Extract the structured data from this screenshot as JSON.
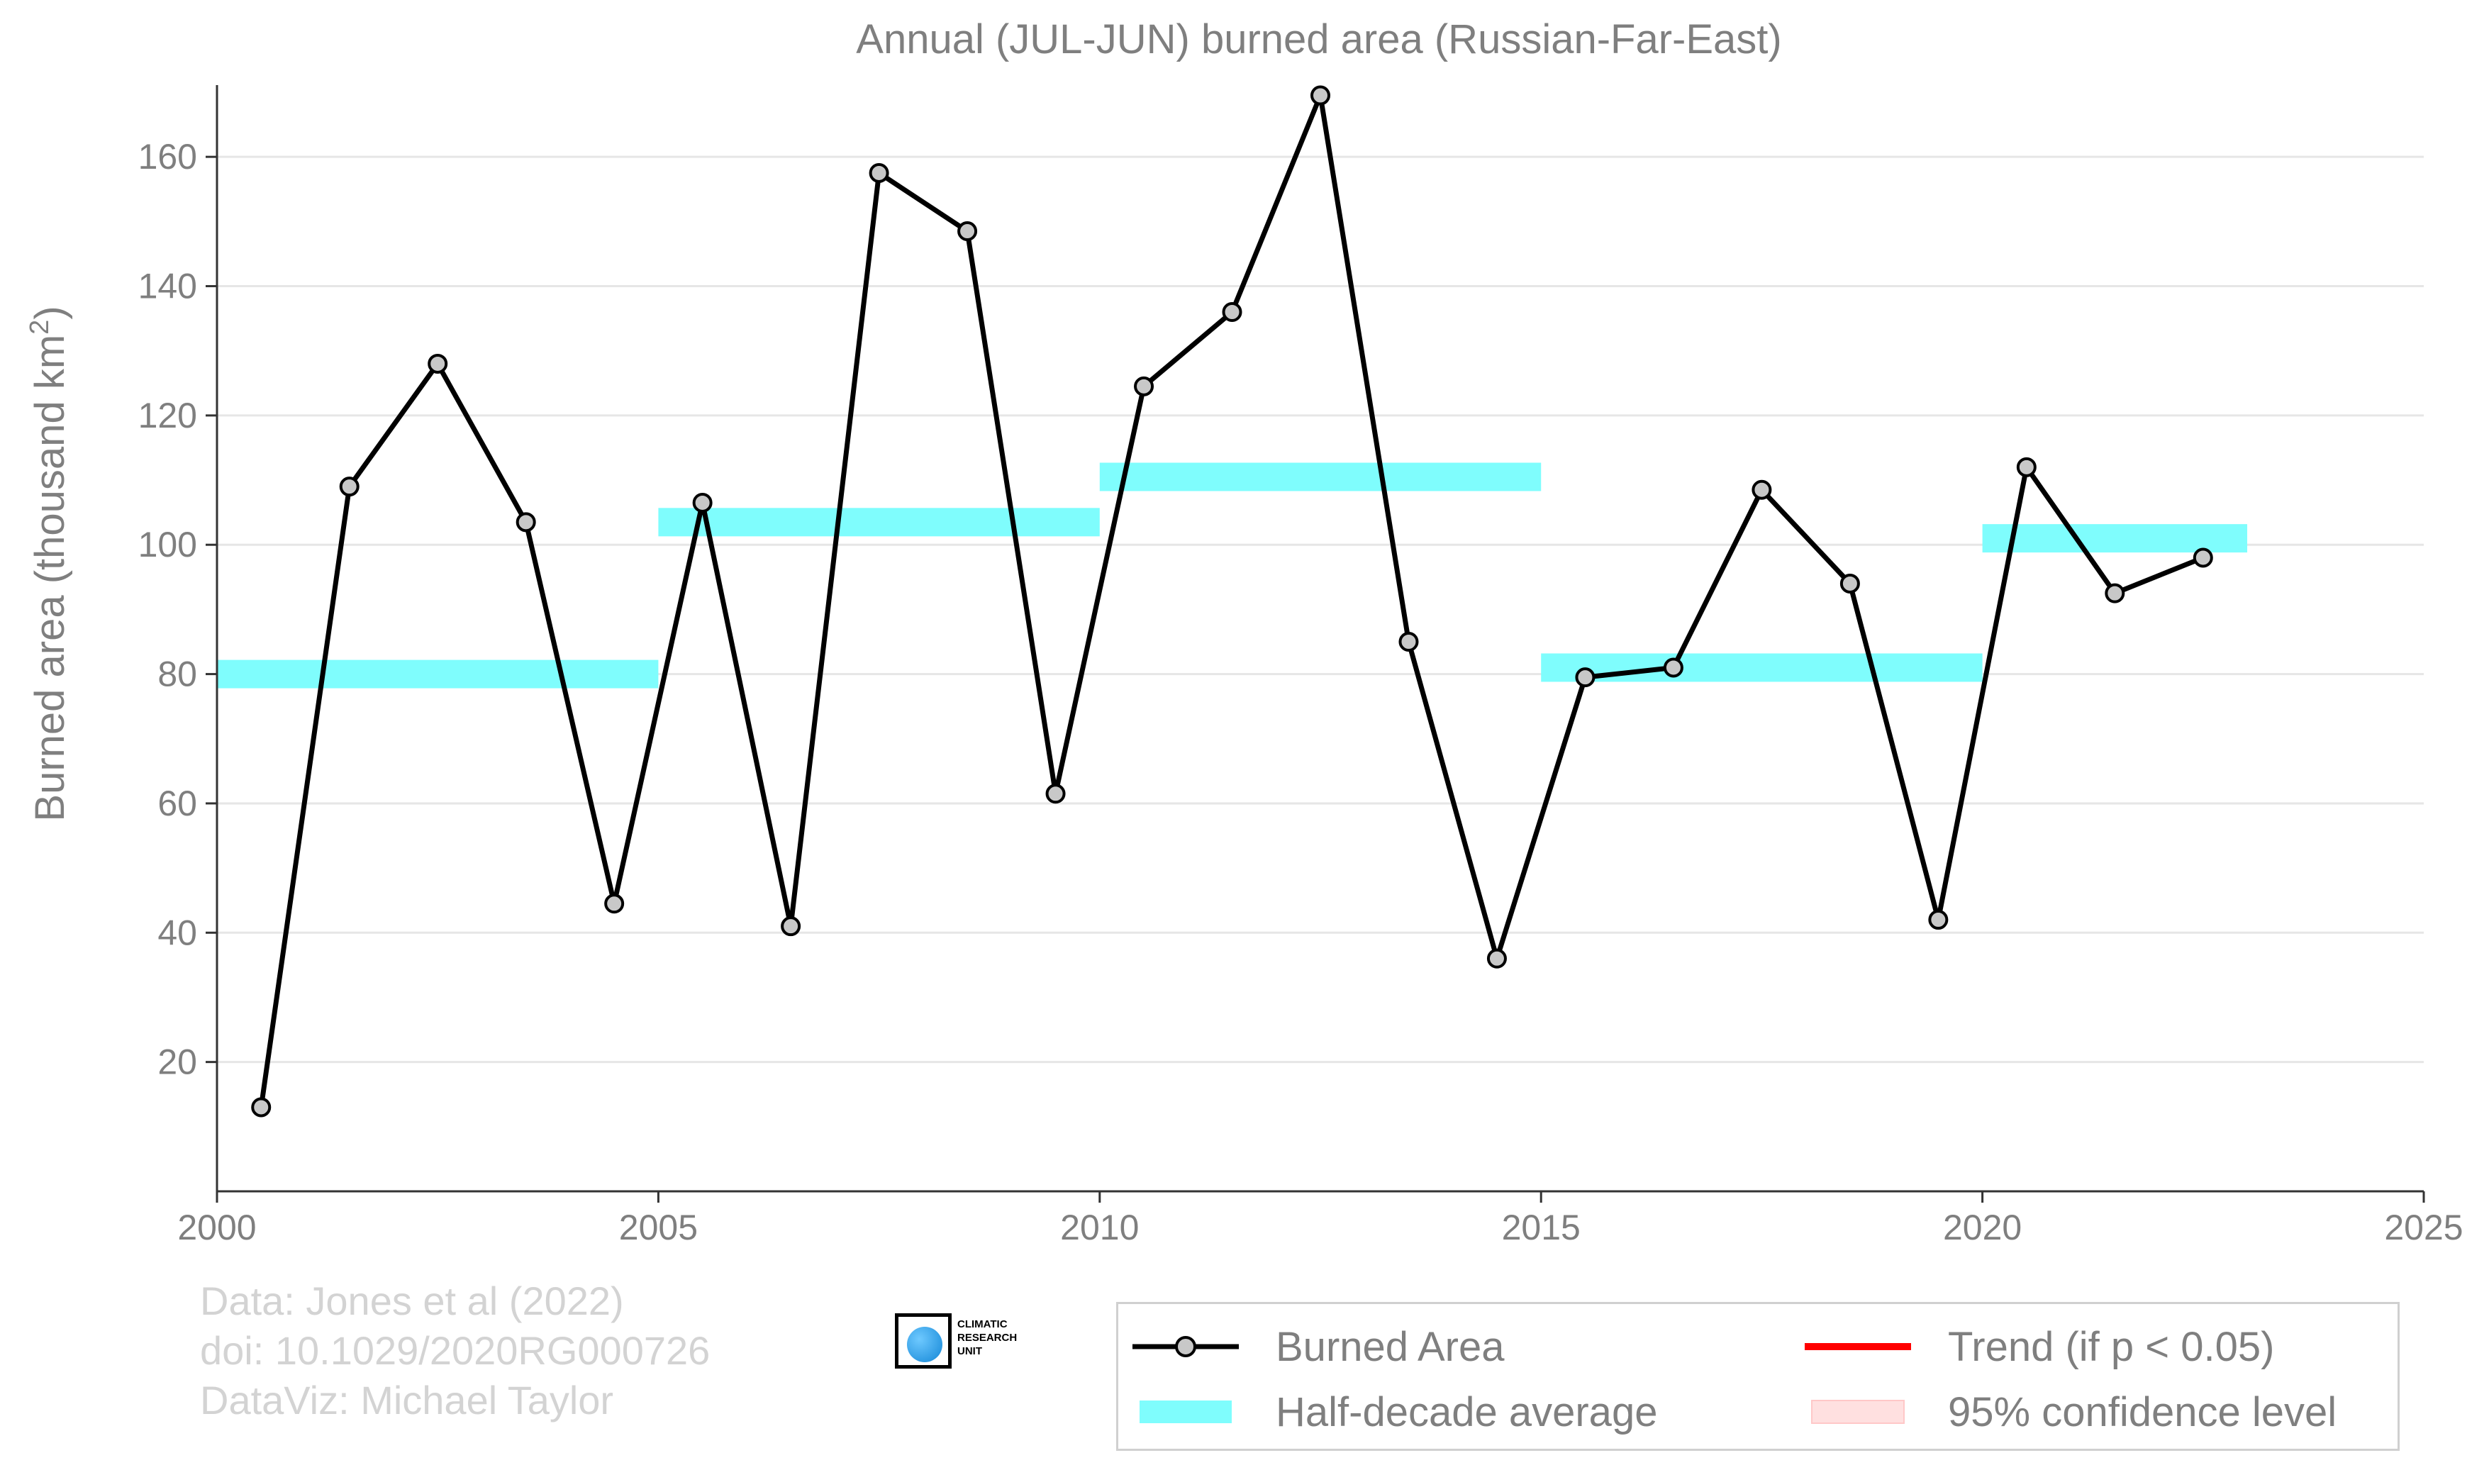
{
  "chart_data": {
    "type": "line",
    "title": "Annual (JUL-JUN) burned area (Russian-Far-East)",
    "ylabel": "Burned area (thousand km",
    "ylabel_sup": "2",
    "ylabel_close": ")",
    "xlim": [
      2000,
      2025
    ],
    "ylim": [
      0,
      170
    ],
    "x_ticks": [
      2000,
      2005,
      2010,
      2015,
      2020,
      2025
    ],
    "y_ticks": [
      20,
      40,
      60,
      80,
      100,
      120,
      140,
      160
    ],
    "grid": "horizontal",
    "series": [
      {
        "name": "Burned Area",
        "color": "#000000",
        "marker_color": "#c8c8c8",
        "x": [
          2000.5,
          2001.5,
          2002.5,
          2003.5,
          2004.5,
          2005.5,
          2006.5,
          2007.5,
          2008.5,
          2009.5,
          2010.5,
          2011.5,
          2012.5,
          2013.5,
          2014.5,
          2015.5,
          2016.5,
          2017.5,
          2018.5,
          2019.5,
          2020.5,
          2021.5,
          2022.5
        ],
        "values": [
          13,
          109,
          128,
          103.5,
          44.5,
          106.5,
          41,
          157.5,
          148.5,
          61.5,
          124.5,
          136,
          169.5,
          85,
          36,
          79.5,
          81,
          108.5,
          94,
          42,
          112,
          92.5,
          98
        ]
      }
    ],
    "half_decade_average": {
      "name": "Half-decade average",
      "color": "#7ffdfd",
      "segments": [
        {
          "x0": 2000,
          "x1": 2005,
          "value": 80
        },
        {
          "x0": 2005,
          "x1": 2010,
          "value": 103.5
        },
        {
          "x0": 2010,
          "x1": 2015,
          "value": 110.5
        },
        {
          "x0": 2015,
          "x1": 2020,
          "value": 81
        },
        {
          "x0": 2020,
          "x1": 2023,
          "value": 101
        }
      ]
    },
    "legend": {
      "placement": "bottom-right",
      "items": [
        {
          "label": "Burned Area",
          "kind": "line-marker",
          "color": "#000000"
        },
        {
          "label": "Trend (if p < 0.05)",
          "kind": "line",
          "color": "#ff0000"
        },
        {
          "label": "Half-decade average",
          "kind": "band",
          "color": "#7ffdfd"
        },
        {
          "label": "95% confidence level",
          "kind": "patch",
          "color": "#ffe0e0"
        }
      ]
    }
  },
  "credits": {
    "line1": "Data: Jones et al (2022)",
    "line2": "doi: 10.1029/2020RG000726",
    "line3": "DataViz: Michael Taylor"
  },
  "logo": {
    "line1": "CLIMATIC",
    "line2": "RESEARCH",
    "line3": "UNIT"
  }
}
